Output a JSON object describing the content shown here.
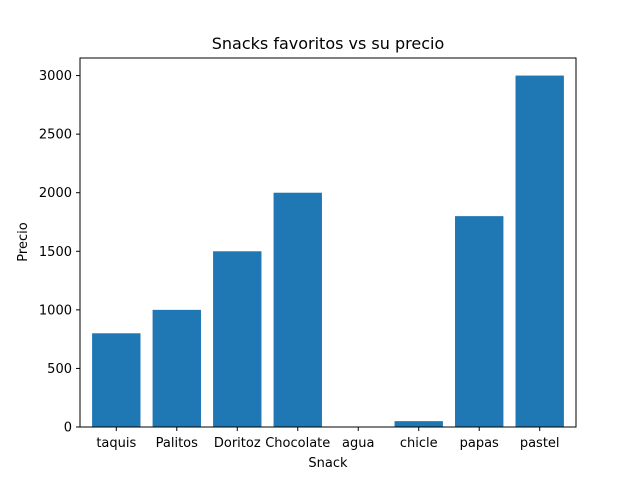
{
  "chart_data": {
    "type": "bar",
    "title": "Snacks favoritos vs su precio",
    "xlabel": "Snack",
    "ylabel": "Precio",
    "categories": [
      "taquis",
      "Palitos",
      "Doritoz",
      "Chocolate",
      "agua",
      "chicle",
      "papas",
      "pastel"
    ],
    "values": [
      800,
      1000,
      1500,
      2000,
      0,
      50,
      1800,
      3000
    ],
    "ylim": [
      0,
      3150
    ],
    "yticks": [
      0,
      500,
      1000,
      1500,
      2000,
      2500,
      3000
    ],
    "grid": false,
    "bar_color": "#1f77b4"
  }
}
